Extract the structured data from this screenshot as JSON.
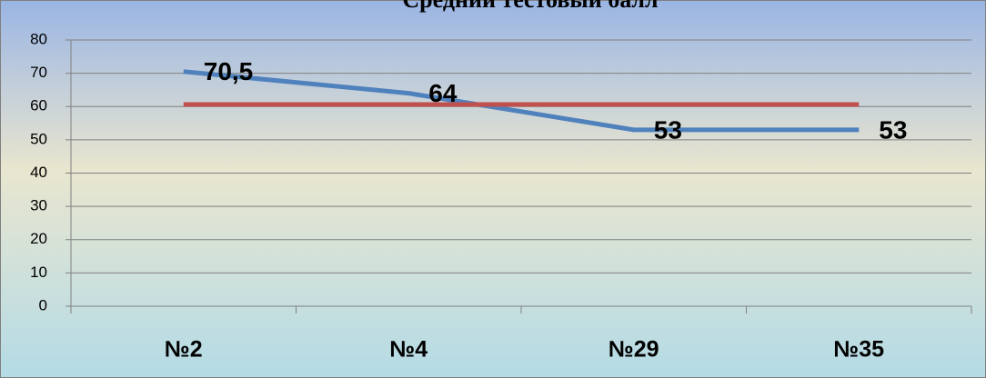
{
  "chart_data": {
    "type": "line",
    "title": "Средний тестовый балл",
    "categories": [
      "№2",
      "№4",
      "№29",
      "№35"
    ],
    "series": [
      {
        "color": "#4f81bd",
        "values": [
          70.5,
          64,
          53,
          53
        ],
        "value_labels": [
          "70,5",
          "64",
          "53",
          "53"
        ]
      },
      {
        "color": "#c0504d",
        "values": [
          60.6,
          60.6,
          60.6,
          60.6
        ]
      }
    ],
    "ylim": [
      0,
      80
    ],
    "yticks": [
      0,
      10,
      20,
      30,
      40,
      50,
      60,
      70,
      80
    ],
    "grid": true
  }
}
